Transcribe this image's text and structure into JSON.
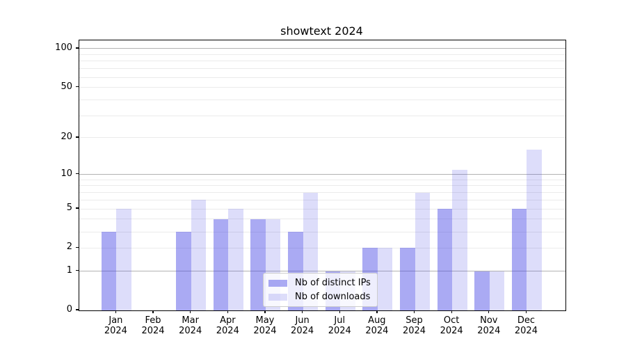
{
  "chart_data": {
    "type": "bar",
    "title": "showtext 2024",
    "categories": [
      "Jan",
      "Feb",
      "Mar",
      "Apr",
      "May",
      "Jun",
      "Jul",
      "Aug",
      "Sep",
      "Oct",
      "Nov",
      "Dec"
    ],
    "category_year": "2024",
    "series": [
      {
        "name": "Nb of distinct IPs",
        "color": "rgba(67, 67, 228, 0.45)",
        "solid_color_hint": "#aaaaf4",
        "values": [
          3,
          0,
          3,
          4,
          4,
          3,
          1,
          2,
          2,
          5,
          1,
          5
        ]
      },
      {
        "name": "Nb of downloads",
        "color": "rgba(67, 67, 228, 0.18)",
        "solid_color_hint": "#dcdcf8",
        "values": [
          5,
          0,
          6,
          5,
          4,
          7,
          1,
          2,
          7,
          11,
          1,
          16
        ]
      }
    ],
    "xlabel": "",
    "ylabel": "",
    "yscale": "log1p",
    "ylim": [
      0,
      116
    ],
    "yticks": [
      0,
      1,
      2,
      5,
      10,
      20,
      50,
      100
    ],
    "grid": {
      "major_values": [
        1,
        10,
        100
      ],
      "minor_values": [
        2,
        3,
        4,
        5,
        6,
        7,
        8,
        9,
        20,
        30,
        40,
        50,
        60,
        70,
        80,
        90
      ],
      "major_color": "#b2b2b2",
      "minor_color": "#ebebeb"
    },
    "legend": {
      "position": "lower center"
    }
  },
  "colors": {
    "background": "#ffffff",
    "spine": "#000000",
    "text": "#000000"
  }
}
